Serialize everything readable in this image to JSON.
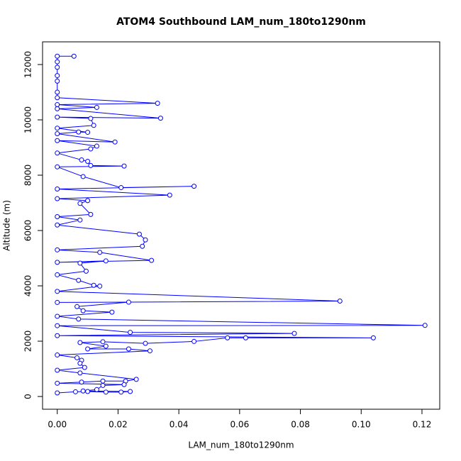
{
  "chart_data": {
    "type": "line",
    "title": "ATOM4 Southbound LAM_num_180to1290nm",
    "x_label": "LAM_num_180to1290nm",
    "y_label": "Altitude (m)",
    "color": "#0000ff",
    "markers": true,
    "xlim": [
      -0.00484,
      0.12584
    ],
    "ylim": [
      -460,
      12820
    ],
    "xticks": [
      {
        "value": 0,
        "label": "0.00"
      },
      {
        "value": 0.02,
        "label": "0.02"
      },
      {
        "value": 0.04,
        "label": "0.04"
      },
      {
        "value": 0.06,
        "label": "0.06"
      },
      {
        "value": 0.08,
        "label": "0.08"
      },
      {
        "value": 0.1,
        "label": "0.10"
      },
      {
        "value": 0.12,
        "label": "0.12"
      }
    ],
    "yticks": [
      0,
      2000,
      4000,
      6000,
      8000,
      10000,
      12000
    ],
    "x": [
      0.0055,
      0,
      0,
      0,
      0,
      0,
      0,
      0,
      0.033,
      0,
      0.013,
      0,
      0.034,
      0,
      0.011,
      0.012,
      0,
      0.01,
      0.007,
      0,
      0.019,
      0,
      0.013,
      0.011,
      0,
      0.008,
      0.01,
      0.011,
      0.022,
      0,
      0.0085,
      0.021,
      0.045,
      0,
      0.037,
      0,
      0.01,
      0.0075,
      0.011,
      0,
      0.0075,
      0,
      0.027,
      0.029,
      0.028,
      0,
      0.014,
      0.031,
      0,
      0.016,
      0.0075,
      0.0095,
      0,
      0.007,
      0.012,
      0.014,
      0,
      0.093,
      0,
      0.0235,
      0.0065,
      0.0085,
      0.018,
      0,
      0.007,
      0.121,
      0,
      0.024,
      0.078,
      0,
      0.104,
      0.062,
      0.056,
      0.045,
      0.029,
      0.015,
      0.0075,
      0.016,
      0.01,
      0.0235,
      0.0305,
      0,
      0.0065,
      0.008,
      0.0075,
      0.009,
      0,
      0.0075,
      0.026,
      0.0225,
      0.015,
      0.008,
      0,
      0.022,
      0.015,
      0.013,
      0.0085,
      0.024,
      0.021,
      0.016,
      0.01,
      0.006,
      0
    ],
    "values": [
      12300,
      12300,
      12100,
      11900,
      11600,
      11400,
      11000,
      10800,
      10600,
      10550,
      10450,
      10400,
      10060,
      10100,
      10050,
      9800,
      9700,
      9550,
      9560,
      9500,
      9200,
      9250,
      9050,
      8950,
      8800,
      8550,
      8500,
      8350,
      8330,
      8300,
      7950,
      7550,
      7600,
      7500,
      7280,
      7150,
      7080,
      6980,
      6580,
      6500,
      6380,
      6200,
      5870,
      5660,
      5430,
      5300,
      5210,
      4920,
      4850,
      4900,
      4820,
      4530,
      4400,
      4200,
      4020,
      3990,
      3800,
      3450,
      3400,
      3410,
      3250,
      3100,
      3050,
      2900,
      2800,
      2570,
      2560,
      2320,
      2280,
      2200,
      2120,
      2120,
      2120,
      1990,
      1920,
      1980,
      1950,
      1820,
      1720,
      1720,
      1650,
      1500,
      1400,
      1310,
      1200,
      1050,
      950,
      850,
      620,
      560,
      560,
      520,
      480,
      430,
      400,
      250,
      200,
      180,
      160,
      160,
      180,
      170,
      130
    ]
  }
}
